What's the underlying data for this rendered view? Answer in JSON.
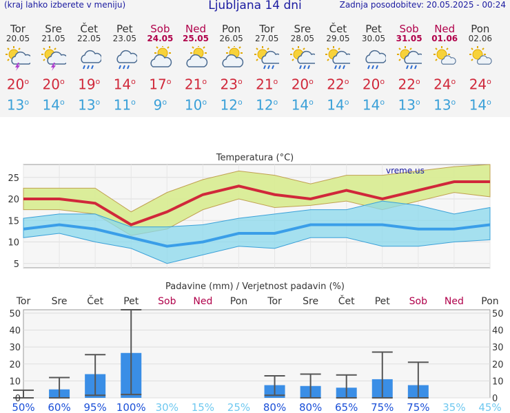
{
  "header": {
    "menu_hint": "(kraj lahko izberete v meniju)",
    "title": "Ljubljana 14 dni",
    "updated": "Zadnja posodobitev: 20.05.2025 - 00:24"
  },
  "days": [
    {
      "name": "Tor",
      "date": "20.05",
      "weekend": false,
      "icon": "thunderstorm-sun-icon",
      "tmax": "20",
      "tmin": "13"
    },
    {
      "name": "Sre",
      "date": "21.05",
      "weekend": false,
      "icon": "thunderstorm-sun-icon",
      "tmax": "20",
      "tmin": "14"
    },
    {
      "name": "Čet",
      "date": "22.05",
      "weekend": false,
      "icon": "rain-cloud-icon",
      "tmax": "19",
      "tmin": "13"
    },
    {
      "name": "Pet",
      "date": "23.05",
      "weekend": false,
      "icon": "rain-cloud-icon",
      "tmax": "14",
      "tmin": "11"
    },
    {
      "name": "Sob",
      "date": "24.05",
      "weekend": true,
      "icon": "partly-cloudy-icon",
      "tmax": "17",
      "tmin": "9"
    },
    {
      "name": "Ned",
      "date": "25.05",
      "weekend": true,
      "icon": "partly-cloudy-icon",
      "tmax": "21",
      "tmin": "10"
    },
    {
      "name": "Pon",
      "date": "26.05",
      "weekend": false,
      "icon": "partly-cloudy-icon",
      "tmax": "23",
      "tmin": "12"
    },
    {
      "name": "Tor",
      "date": "27.05",
      "weekend": false,
      "icon": "sun-rain-icon",
      "tmax": "21",
      "tmin": "12"
    },
    {
      "name": "Sre",
      "date": "28.05",
      "weekend": false,
      "icon": "sun-rain-icon",
      "tmax": "20",
      "tmin": "14"
    },
    {
      "name": "Čet",
      "date": "29.05",
      "weekend": false,
      "icon": "sun-rain-icon",
      "tmax": "22",
      "tmin": "14"
    },
    {
      "name": "Pet",
      "date": "30.05",
      "weekend": false,
      "icon": "rain-cloud-icon",
      "tmax": "20",
      "tmin": "14"
    },
    {
      "name": "Sob",
      "date": "31.05",
      "weekend": true,
      "icon": "sun-rain-icon",
      "tmax": "22",
      "tmin": "13"
    },
    {
      "name": "Ned",
      "date": "01.06",
      "weekend": true,
      "icon": "sun-cloud-icon",
      "tmax": "24",
      "tmin": "13"
    },
    {
      "name": "Pon",
      "date": "02.06",
      "weekend": false,
      "icon": "sun-cloud-icon",
      "tmax": "24",
      "tmin": "14"
    }
  ],
  "degree_symbol": "o",
  "colors": {
    "tmax": "#d0283a",
    "tmin": "#3aa0d8",
    "weekend": "#b0004a",
    "bar": "#3a8ee6",
    "prob_high": "#1a4fd8",
    "prob_low": "#6ec8f0"
  },
  "chart_data": [
    {
      "type": "line",
      "title": "Temperatura (°C)",
      "watermark": "vreme.us",
      "ylim": [
        4,
        28
      ],
      "yticks": [
        5,
        10,
        15,
        20,
        25
      ],
      "series": [
        {
          "values": [
            20,
            20,
            19,
            14,
            17,
            21,
            23,
            21,
            20,
            22,
            20,
            22,
            24,
            24
          ]
        },
        {
          "values": [
            13,
            14,
            13,
            11,
            9,
            10,
            12,
            12,
            14,
            14,
            14,
            13,
            13,
            14
          ]
        }
      ],
      "bands": [
        {
          "upper": [
            22.5,
            22.5,
            22.5,
            17,
            21.5,
            24.5,
            26.5,
            25.5,
            23.5,
            25.5,
            25.5,
            26.5,
            27.5,
            28
          ],
          "lower": [
            17.5,
            17.5,
            16.5,
            11.5,
            13,
            17.5,
            20,
            18,
            18.5,
            19.5,
            17.5,
            19.5,
            21.5,
            20.5
          ]
        },
        {
          "upper": [
            15.5,
            16.5,
            16.5,
            13.5,
            13.5,
            14,
            15.5,
            16.5,
            17.5,
            17.5,
            19.5,
            18.5,
            16.5,
            18
          ],
          "lower": [
            11,
            12,
            10,
            8.5,
            5,
            7,
            9,
            8.5,
            11,
            11,
            9,
            9,
            10,
            10.5
          ]
        }
      ]
    },
    {
      "type": "bar",
      "title": "Padavine (mm) / Verjetnost padavin (%)",
      "categories": [
        "Tor",
        "Sre",
        "Čet",
        "Pet",
        "Sob",
        "Ned",
        "Pon",
        "Tor",
        "Sre",
        "Čet",
        "Pet",
        "Sob",
        "Ned",
        "Pon"
      ],
      "weekend": [
        false,
        false,
        false,
        false,
        true,
        true,
        false,
        false,
        false,
        false,
        false,
        true,
        true,
        false
      ],
      "ylim": [
        0,
        52
      ],
      "yticks": [
        0,
        10,
        20,
        30,
        40,
        50
      ],
      "values": [
        0.3,
        5,
        14,
        26.5,
        0,
        0,
        0,
        7.5,
        7,
        6,
        11,
        7.5,
        0,
        0
      ],
      "range_min": [
        0,
        0,
        1.5,
        2,
        0,
        0,
        0,
        1.5,
        0,
        0,
        0,
        0,
        0,
        0
      ],
      "range_max": [
        4.5,
        12,
        25.5,
        52,
        0,
        0,
        0,
        13,
        14,
        13.5,
        27,
        21,
        0,
        0
      ],
      "probability": [
        "50%",
        "60%",
        "95%",
        "100%",
        "30%",
        "15%",
        "25%",
        "80%",
        "80%",
        "65%",
        "75%",
        "75%",
        "35%",
        "45%"
      ]
    }
  ]
}
